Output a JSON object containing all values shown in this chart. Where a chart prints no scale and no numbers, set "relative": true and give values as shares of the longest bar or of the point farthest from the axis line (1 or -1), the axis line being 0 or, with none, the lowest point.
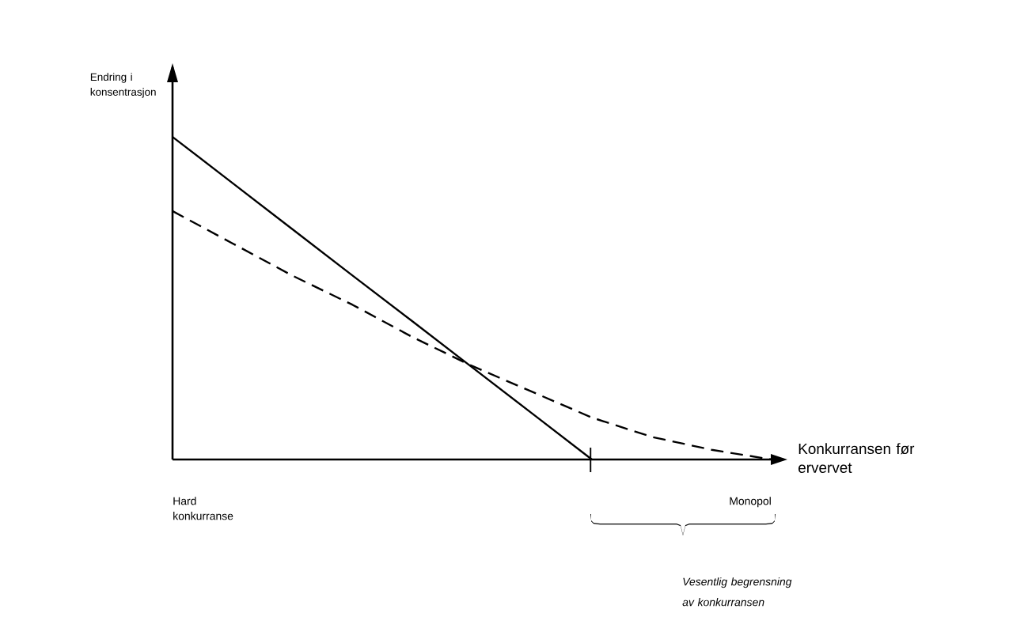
{
  "chart_data": {
    "type": "line",
    "relative": true,
    "ylabel": "Endring i konsentrasjon",
    "xlabel": "Konkurransen før ervervet",
    "categories": [
      null,
      null,
      null,
      null,
      null,
      null,
      null,
      null,
      null,
      null,
      null
    ],
    "series": [
      {
        "color": "#000000",
        "line_style": "solid",
        "values": [
          1,
          0.857,
          0.714,
          0.571,
          0.429,
          0.286,
          0.143,
          0,
          null,
          null,
          null
        ]
      },
      {
        "color": "#000000",
        "line_style": "dashed",
        "values": [
          0.77,
          0.67,
          0.57,
          0.48,
          0.38,
          0.29,
          0.21,
          0.13,
          0.07,
          0.03,
          0
        ]
      }
    ],
    "marker": "none",
    "annotations": [
      "Hard konkurranse",
      "Monopol",
      "Vesentlig begrensning av konkurransen"
    ]
  }
}
